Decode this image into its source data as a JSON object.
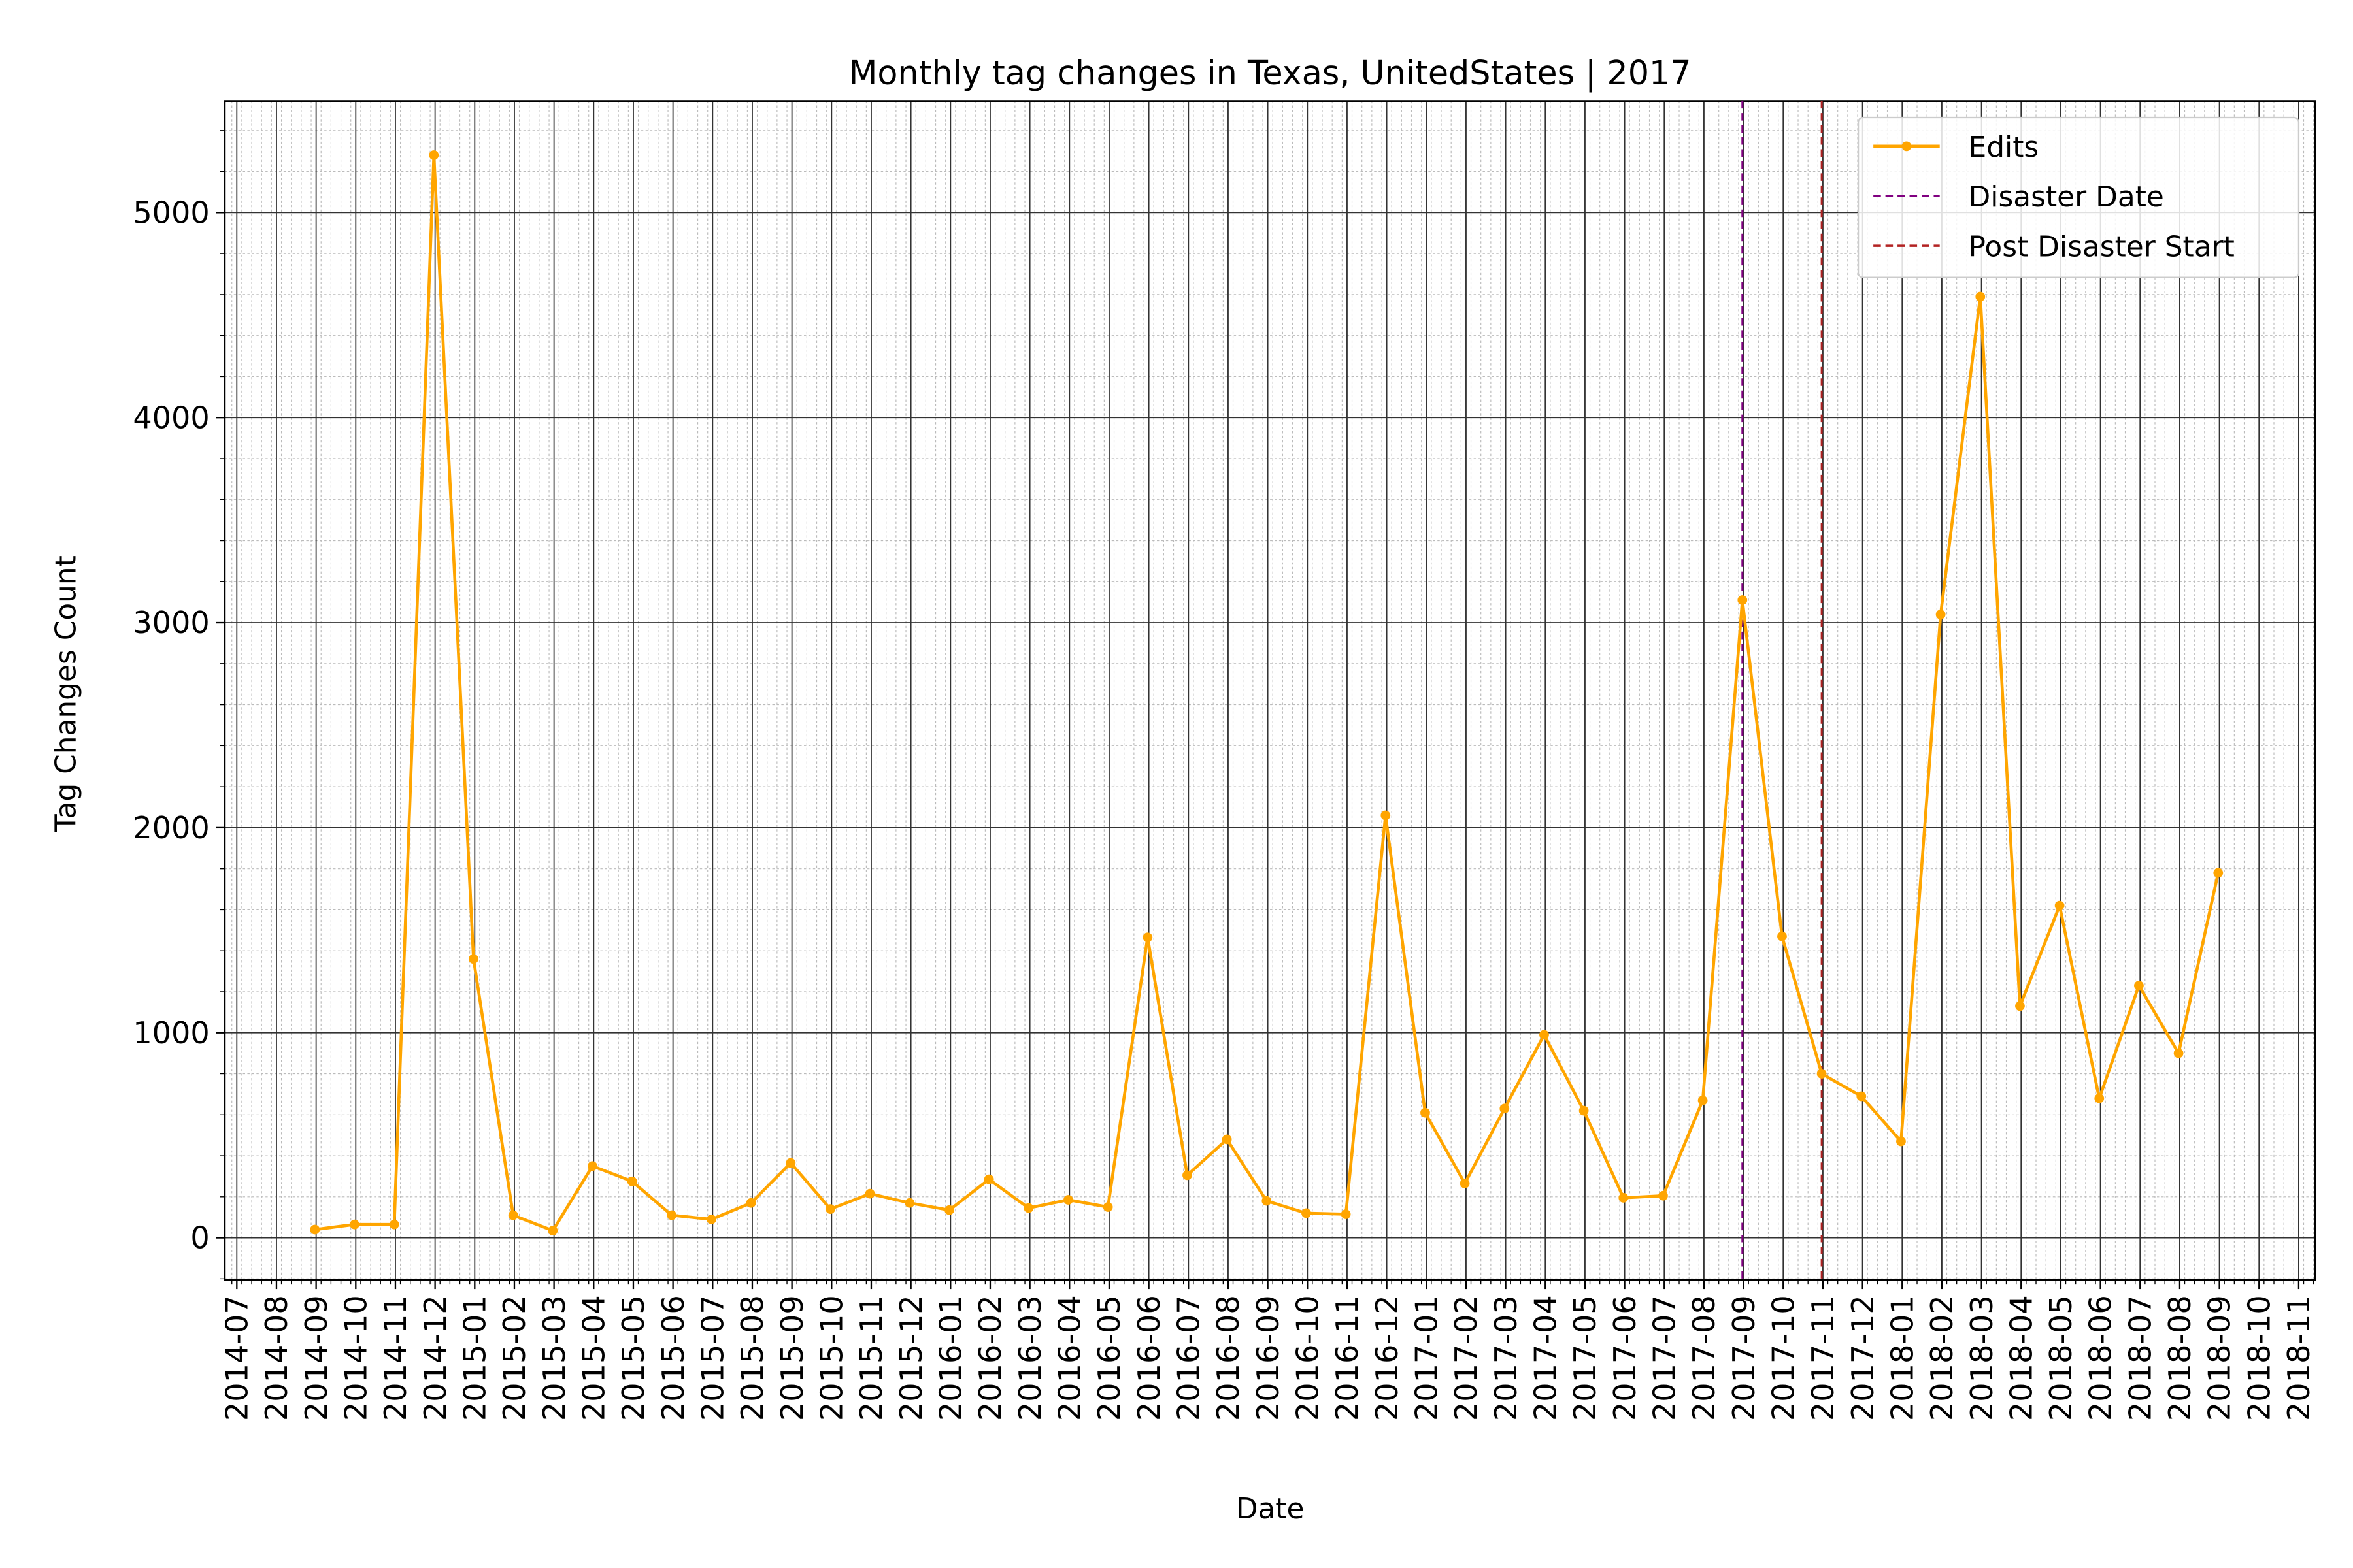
{
  "chart_data": {
    "type": "line",
    "title": "Monthly tag changes in Texas, UnitedStates | 2017",
    "xlabel": "Date",
    "ylabel": "Tag Changes Count",
    "x": [
      "2014-08",
      "2014-09",
      "2014-10",
      "2014-11",
      "2014-12",
      "2015-01",
      "2015-02",
      "2015-03",
      "2015-04",
      "2015-05",
      "2015-06",
      "2015-07",
      "2015-08",
      "2015-09",
      "2015-10",
      "2015-11",
      "2015-12",
      "2016-01",
      "2016-02",
      "2016-03",
      "2016-04",
      "2016-05",
      "2016-06",
      "2016-07",
      "2016-08",
      "2016-09",
      "2016-10",
      "2016-11",
      "2016-12",
      "2017-01",
      "2017-02",
      "2017-03",
      "2017-04",
      "2017-05",
      "2017-06",
      "2017-07",
      "2017-08",
      "2017-09",
      "2017-10",
      "2017-11",
      "2017-12",
      "2018-01",
      "2018-02",
      "2018-03",
      "2018-04",
      "2018-05",
      "2018-06",
      "2018-07",
      "2018-08"
    ],
    "series": [
      {
        "name": "Edits",
        "color": "#ffa500",
        "values": [
          40,
          65,
          65,
          5280,
          1360,
          110,
          35,
          350,
          275,
          110,
          90,
          170,
          365,
          140,
          215,
          170,
          135,
          285,
          145,
          185,
          150,
          1465,
          305,
          480,
          180,
          120,
          115,
          2060,
          610,
          265,
          630,
          990,
          620,
          195,
          205,
          670,
          3110,
          1470,
          800,
          690,
          470,
          3040,
          4590,
          1130,
          1620,
          680,
          1230,
          900,
          1780
        ]
      }
    ],
    "vlines": [
      {
        "name": "Disaster Date",
        "x": "2017-08",
        "color": "#800080"
      },
      {
        "name": "Post Disaster Start",
        "x": "2017-10",
        "color": "#b22222"
      }
    ],
    "xticks": [
      "2014-07",
      "2014-08",
      "2014-09",
      "2014-10",
      "2014-11",
      "2014-12",
      "2015-01",
      "2015-02",
      "2015-03",
      "2015-04",
      "2015-05",
      "2015-06",
      "2015-07",
      "2015-08",
      "2015-09",
      "2015-10",
      "2015-11",
      "2015-12",
      "2016-01",
      "2016-02",
      "2016-03",
      "2016-04",
      "2016-05",
      "2016-06",
      "2016-07",
      "2016-08",
      "2016-09",
      "2016-10",
      "2016-11",
      "2016-12",
      "2017-01",
      "2017-02",
      "2017-03",
      "2017-04",
      "2017-05",
      "2017-06",
      "2017-07",
      "2017-08",
      "2017-09",
      "2017-10",
      "2017-11",
      "2017-12",
      "2018-01",
      "2018-02",
      "2018-03",
      "2018-04",
      "2018-05",
      "2018-06",
      "2018-07",
      "2018-08",
      "2018-09",
      "2018-10",
      "2018-11"
    ],
    "ylim": [
      -206,
      5544
    ],
    "yticks": [
      0,
      1000,
      2000,
      3000,
      4000,
      5000
    ],
    "grid": true,
    "legend": "upper right"
  }
}
